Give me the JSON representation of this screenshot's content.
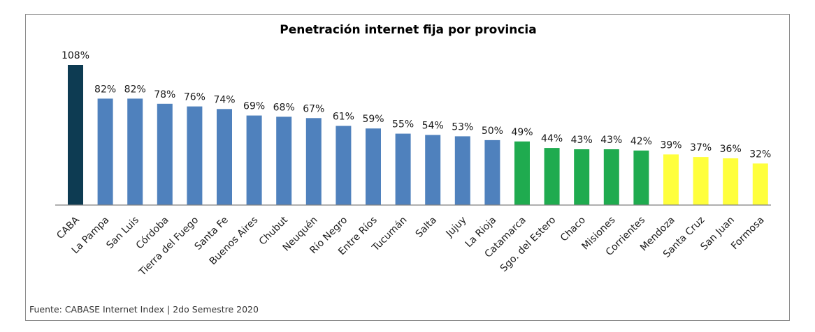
{
  "chart_data": {
    "type": "bar",
    "title": "Penetración internet fija por provincia",
    "xlabel": "",
    "ylabel": "",
    "ylim": [
      0,
      108
    ],
    "grid": false,
    "legend": "none",
    "categories": [
      "CABA",
      "La Pampa",
      "San Luis",
      "Córdoba",
      "Tierra del Fuego",
      "Santa Fe",
      "Buenos Aires",
      "Chubut",
      "Neuquén",
      "Río Negro",
      "Entre Ríos",
      "Tucumán",
      "Salta",
      "Jujuy",
      "La Rioja",
      "Catamarca",
      "Sgo. del Estero",
      "Chaco",
      "Misiones",
      "Corrientes",
      "Mendoza",
      "Santa Cruz",
      "San Juan",
      "Formosa"
    ],
    "values": [
      108,
      82,
      82,
      78,
      76,
      74,
      69,
      68,
      67,
      61,
      59,
      55,
      54,
      53,
      50,
      49,
      44,
      43,
      43,
      42,
      39,
      37,
      36,
      32
    ],
    "value_labels": [
      "108%",
      "82%",
      "82%",
      "78%",
      "76%",
      "74%",
      "69%",
      "68%",
      "67%",
      "61%",
      "59%",
      "55%",
      "54%",
      "53%",
      "50%",
      "49%",
      "44%",
      "43%",
      "43%",
      "42%",
      "39%",
      "37%",
      "36%",
      "32%"
    ],
    "bar_colors": [
      "#0d3b52",
      "#4f81bd",
      "#4f81bd",
      "#4f81bd",
      "#4f81bd",
      "#4f81bd",
      "#4f81bd",
      "#4f81bd",
      "#4f81bd",
      "#4f81bd",
      "#4f81bd",
      "#4f81bd",
      "#4f81bd",
      "#4f81bd",
      "#4f81bd",
      "#1fab4f",
      "#1fab4f",
      "#1fab4f",
      "#1fab4f",
      "#1fab4f",
      "#ffff3c",
      "#ffff3c",
      "#ffff3c",
      "#ffff3c"
    ]
  },
  "source": "Fuente: CABASE Internet Index | 2do Semestre 2020"
}
